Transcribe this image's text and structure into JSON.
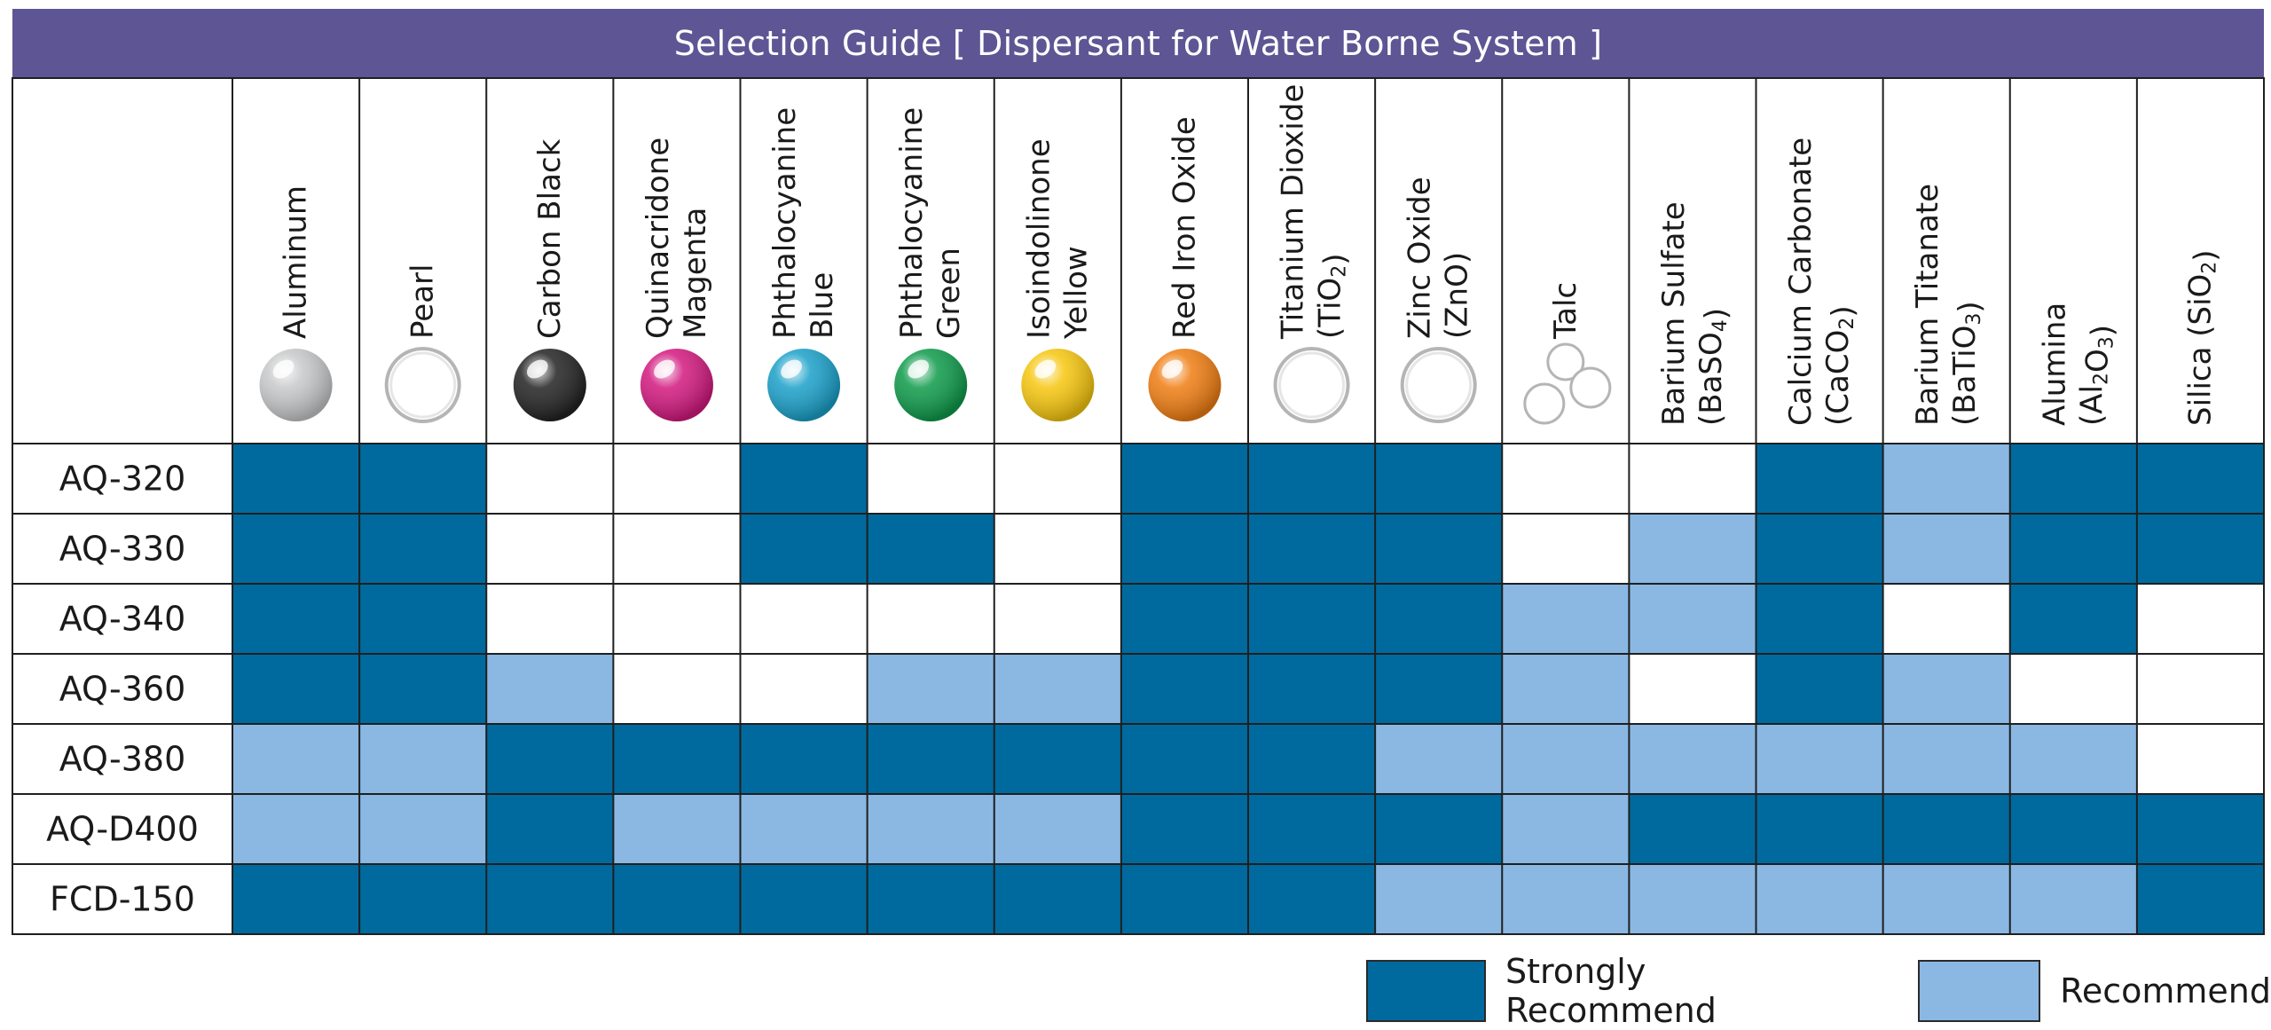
{
  "title": "Selection Guide [ Dispersant for Water Borne System ]",
  "colors": {
    "title_bar": "#5e5594",
    "strong": "#006a9e",
    "recommend": "#8ab8e3",
    "none": "#ffffff",
    "grid": "#1f1f1f"
  },
  "legend": {
    "strong_label": "Strongly Recommend",
    "recommend_label": "Recommend"
  },
  "chart_data": {
    "type": "table",
    "value_key": {
      "2": "Strongly Recommend",
      "1": "Recommend",
      "0": ""
    },
    "columns": [
      {
        "lines": [
          "Aluminum"
        ],
        "icon": "sphere",
        "color": "#c7c8c9"
      },
      {
        "lines": [
          "Pearl"
        ],
        "icon": "sphere",
        "color": "#ffffff"
      },
      {
        "lines": [
          "Carbon Black"
        ],
        "icon": "sphere",
        "color": "#222222"
      },
      {
        "lines": [
          "Quinacridone",
          "Magenta"
        ],
        "icon": "sphere",
        "color": "#d2187e"
      },
      {
        "lines": [
          "Phthalocyanine",
          "Blue"
        ],
        "icon": "sphere",
        "color": "#1aa0c9"
      },
      {
        "lines": [
          "Phthalocyanine",
          "Green"
        ],
        "icon": "sphere",
        "color": "#0e9a4a"
      },
      {
        "lines": [
          "Isoindolinone",
          "Yellow"
        ],
        "icon": "sphere",
        "color": "#f6c60e"
      },
      {
        "lines": [
          "Red Iron Oxide"
        ],
        "icon": "sphere",
        "color": "#ef7d12"
      },
      {
        "lines": [
          "Titanium Dioxide",
          "(TiO2)"
        ],
        "icon": "sphere",
        "color": "#ffffff"
      },
      {
        "lines": [
          "Zinc Oxide",
          "(ZnO)"
        ],
        "icon": "sphere",
        "color": "#ffffff"
      },
      {
        "lines": [
          "Talc"
        ],
        "icon": "talc",
        "color": "#ffffff"
      },
      {
        "lines": [
          "Barium Sulfate",
          "(BaSO4)"
        ],
        "icon": "none",
        "color": ""
      },
      {
        "lines": [
          "Calcium Carbonate",
          "(CaCO2)"
        ],
        "icon": "none",
        "color": ""
      },
      {
        "lines": [
          "Barium Titanate",
          "(BaTiO3)"
        ],
        "icon": "none",
        "color": ""
      },
      {
        "lines": [
          "Alumina",
          "(Al2O3)"
        ],
        "icon": "none",
        "color": ""
      },
      {
        "lines": [
          "Silica (SiO2)"
        ],
        "icon": "none",
        "color": ""
      }
    ],
    "rows": [
      {
        "label": "AQ-320",
        "values": [
          2,
          2,
          0,
          0,
          2,
          0,
          0,
          2,
          2,
          2,
          0,
          0,
          2,
          1,
          2,
          2
        ]
      },
      {
        "label": "AQ-330",
        "values": [
          2,
          2,
          0,
          0,
          2,
          2,
          0,
          2,
          2,
          2,
          0,
          1,
          2,
          1,
          2,
          2
        ]
      },
      {
        "label": "AQ-340",
        "values": [
          2,
          2,
          0,
          0,
          0,
          0,
          0,
          2,
          2,
          2,
          1,
          1,
          2,
          0,
          2,
          0
        ]
      },
      {
        "label": "AQ-360",
        "values": [
          2,
          2,
          1,
          0,
          0,
          1,
          1,
          2,
          2,
          2,
          1,
          0,
          2,
          1,
          0,
          0
        ]
      },
      {
        "label": "AQ-380",
        "values": [
          1,
          1,
          2,
          2,
          2,
          2,
          2,
          2,
          2,
          1,
          1,
          1,
          1,
          1,
          1,
          0
        ]
      },
      {
        "label": "AQ-D400",
        "values": [
          1,
          1,
          2,
          1,
          1,
          1,
          1,
          2,
          2,
          2,
          1,
          2,
          2,
          2,
          2,
          2
        ]
      },
      {
        "label": "FCD-150",
        "values": [
          2,
          2,
          2,
          2,
          2,
          2,
          2,
          2,
          2,
          1,
          1,
          1,
          1,
          1,
          1,
          2
        ]
      }
    ]
  }
}
